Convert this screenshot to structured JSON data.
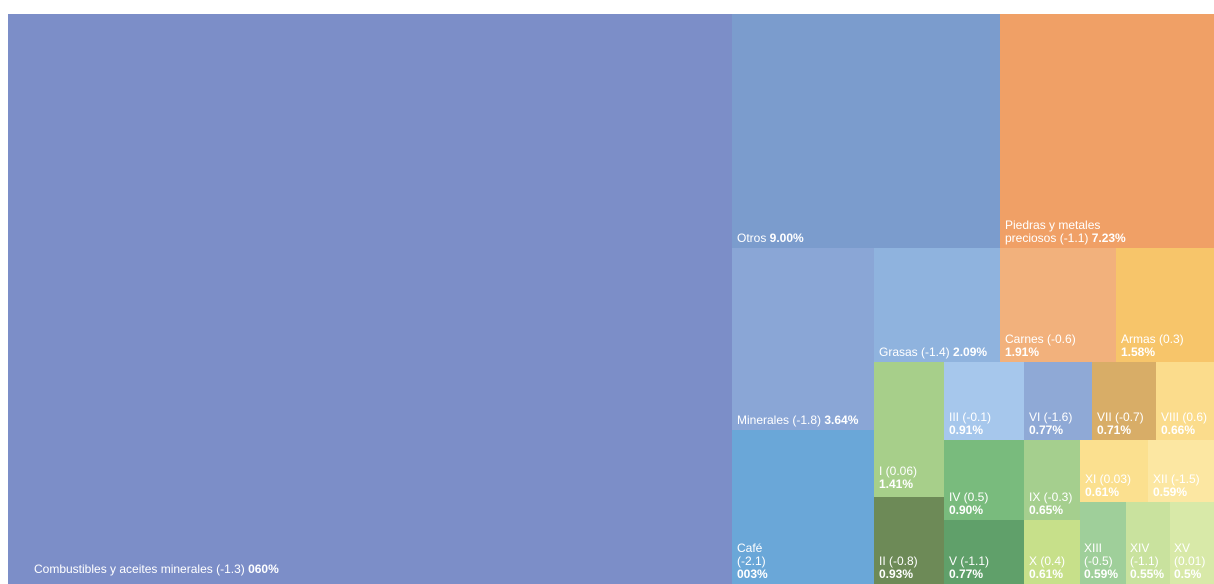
{
  "chart_data": {
    "type": "treemap",
    "title": "",
    "colors": {
      "combustibles": "#7c8ec8",
      "otros": "#7b9ccd",
      "piedras": "#f0a066",
      "minerales": "#8aa6d6",
      "grasas": "#8fb3de",
      "carnes": "#f2b17c",
      "armas": "#f7c56a",
      "cafe": "#6aa7d8",
      "I": "#a7cf8a",
      "II": "#6d8a57",
      "III": "#a6c7ec",
      "IV": "#79bb7d",
      "V": "#60a06a",
      "VI": "#8fa9d6",
      "VII": "#d8ad67",
      "VIII": "#fbdc8c",
      "IX": "#a5cf8e",
      "X": "#c7e08a",
      "XI": "#fbe08f",
      "XII": "#fce7a2",
      "XIII": "#9fcf9a",
      "XIV": "#c9e29e",
      "XV": "#d8e9a8"
    },
    "items": [
      {
        "key": "combustibles",
        "label": "Combustibles y aceites minerales (-1.3) ",
        "value": "060%"
      },
      {
        "key": "otros",
        "label": "Otros ",
        "value": "9.00%"
      },
      {
        "key": "piedras",
        "label": "Piedras y metales preciosos (-1.1) ",
        "value": "7.23%"
      },
      {
        "key": "minerales",
        "label": "Minerales (-1.8) ",
        "value": "3.64%"
      },
      {
        "key": "grasas",
        "label": "Grasas (-1.4) ",
        "value": "2.09%"
      },
      {
        "key": "carnes",
        "label": "Carnes (-0.6) ",
        "value": "1.91%"
      },
      {
        "key": "armas",
        "label": "Armas (0.3) ",
        "value": "1.58%"
      },
      {
        "key": "cafe",
        "label": "Café (-2.1) ",
        "value": "003%"
      },
      {
        "key": "I",
        "label": "I (0.06) ",
        "value": "1.41%"
      },
      {
        "key": "II",
        "label": "II (-0.8) ",
        "value": "0.93%"
      },
      {
        "key": "III",
        "label": "III (-0.1) ",
        "value": "0.91%"
      },
      {
        "key": "IV",
        "label": "IV (0.5) ",
        "value": "0.90%"
      },
      {
        "key": "V",
        "label": "V (-1.1) ",
        "value": "0.77%"
      },
      {
        "key": "VI",
        "label": "VI (-1.6) ",
        "value": "0.77%"
      },
      {
        "key": "VII",
        "label": "VII (-0.7) ",
        "value": "0.71%"
      },
      {
        "key": "VIII",
        "label": "VIII (0.6) ",
        "value": "0.66%"
      },
      {
        "key": "IX",
        "label": "IX (-0.3) ",
        "value": "0.65%"
      },
      {
        "key": "X",
        "label": "X (0.4) ",
        "value": "0.61%"
      },
      {
        "key": "XI",
        "label": "XI (0.03) ",
        "value": "0.61%"
      },
      {
        "key": "XII",
        "label": "XII (-1.5) ",
        "value": "0.59%"
      },
      {
        "key": "XIII",
        "label": "XIII (-0.5) ",
        "value": "0.59%"
      },
      {
        "key": "XIV",
        "label": "XIV (-1.1) ",
        "value": "0.55%"
      },
      {
        "key": "XV",
        "label": "XV (0.01) ",
        "value": "0.5%"
      }
    ]
  }
}
